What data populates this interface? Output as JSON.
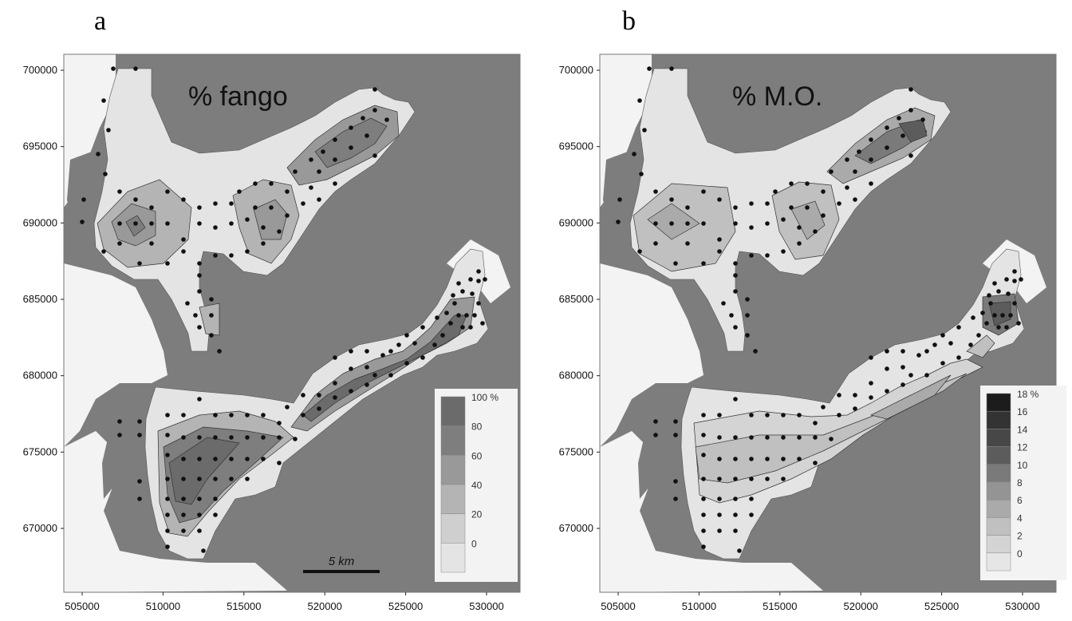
{
  "panels": [
    {
      "letter": "a",
      "title": "% fango",
      "x_ticks": [
        "505000",
        "510000",
        "515000",
        "520000",
        "525000",
        "530000"
      ],
      "y_ticks": [
        "700000",
        "695000",
        "690000",
        "685000",
        "680000",
        "675000",
        "670000"
      ],
      "legend": [
        "100 %",
        "80",
        "60",
        "40",
        "20",
        "0"
      ],
      "legend_colors": [
        "#6b6b6b",
        "#7e7e7e",
        "#999999",
        "#b4b4b4",
        "#cfcfcf",
        "#e4e4e4"
      ],
      "scale_bar": "5 km"
    },
    {
      "letter": "b",
      "title": "% M.O.",
      "x_ticks": [
        "505000",
        "510000",
        "515000",
        "520000",
        "525000",
        "530000"
      ],
      "y_ticks": [
        "700000",
        "695000",
        "690000",
        "685000",
        "680000",
        "675000",
        "670000"
      ],
      "legend": [
        "18 %",
        "16",
        "14",
        "12",
        "10",
        "8",
        "6",
        "4",
        "2",
        "0"
      ],
      "legend_colors": [
        "#1c1c1c",
        "#333333",
        "#474747",
        "#5c5c5c",
        "#7a7a7a",
        "#949494",
        "#aaaaaa",
        "#c0c0c0",
        "#d4d4d4",
        "#e6e6e6"
      ]
    }
  ],
  "colors": {
    "land": "#7d7d7d",
    "water_light": "#e4e4e4",
    "dot": "#111111"
  }
}
